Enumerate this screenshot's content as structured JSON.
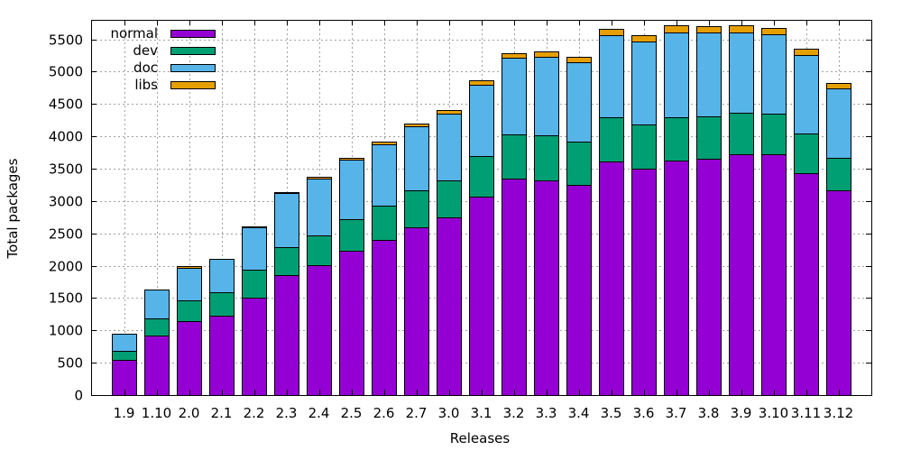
{
  "chart_data": {
    "type": "bar",
    "stacked": true,
    "xlabel": "Releases",
    "ylabel": "Total packages",
    "ylim": [
      0,
      5800
    ],
    "yticks": [
      0,
      500,
      1000,
      1500,
      2000,
      2500,
      3000,
      3500,
      4000,
      4500,
      5000,
      5500
    ],
    "grid": true,
    "legend_position": "top-left",
    "categories": [
      "1.9",
      "1.10",
      "2.0",
      "2.1",
      "2.2",
      "2.3",
      "2.4",
      "2.5",
      "2.6",
      "2.7",
      "3.0",
      "3.1",
      "3.2",
      "3.3",
      "3.4",
      "3.5",
      "3.6",
      "3.7",
      "3.8",
      "3.9",
      "3.10",
      "3.11",
      "3.12"
    ],
    "series": [
      {
        "name": "normal",
        "color": "#9400d3",
        "values": [
          540,
          920,
          1140,
          1220,
          1500,
          1860,
          2010,
          2230,
          2400,
          2600,
          2750,
          3070,
          3340,
          3320,
          3250,
          3610,
          3500,
          3630,
          3650,
          3720,
          3720,
          3430,
          3160
        ]
      },
      {
        "name": "dev",
        "color": "#009e73",
        "values": [
          140,
          270,
          330,
          370,
          440,
          430,
          460,
          490,
          530,
          560,
          570,
          620,
          690,
          690,
          670,
          680,
          680,
          670,
          660,
          640,
          630,
          610,
          510
        ]
      },
      {
        "name": "doc",
        "color": "#56b4e9",
        "values": [
          270,
          440,
          500,
          520,
          650,
          830,
          880,
          920,
          940,
          990,
          1030,
          1100,
          1180,
          1220,
          1220,
          1270,
          1280,
          1300,
          1290,
          1250,
          1230,
          1210,
          1070
        ]
      },
      {
        "name": "libs",
        "color": "#e69f00",
        "values": [
          0,
          0,
          20,
          0,
          20,
          20,
          30,
          30,
          50,
          50,
          60,
          70,
          70,
          80,
          90,
          100,
          100,
          110,
          100,
          100,
          100,
          110,
          90
        ]
      }
    ]
  }
}
